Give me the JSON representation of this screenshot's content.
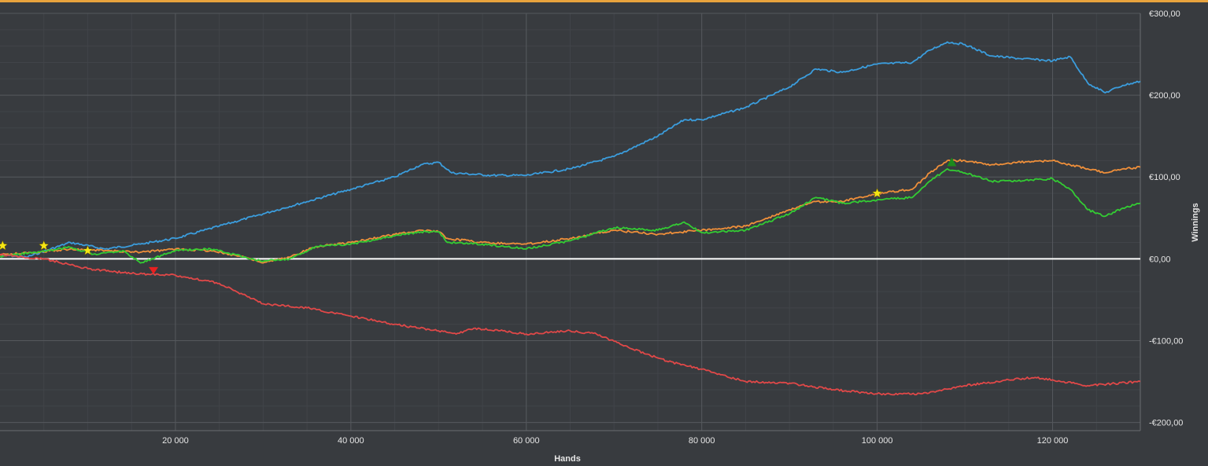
{
  "chart_data": {
    "type": "line",
    "xlabel": "Hands",
    "ylabel": "Winnings",
    "xlim": [
      0,
      130000
    ],
    "ylim": [
      -210,
      300
    ],
    "grid": true,
    "x_ticks": [
      {
        "value": 20000,
        "label": "20 000"
      },
      {
        "value": 40000,
        "label": "40 000"
      },
      {
        "value": 60000,
        "label": "60 000"
      },
      {
        "value": 80000,
        "label": "80 000"
      },
      {
        "value": 100000,
        "label": "100 000"
      },
      {
        "value": 120000,
        "label": "120 000"
      }
    ],
    "y_ticks": [
      {
        "value": 300,
        "label": "€300,00"
      },
      {
        "value": 200,
        "label": "€200,00"
      },
      {
        "value": 100,
        "label": "€100,00"
      },
      {
        "value": 0,
        "label": "€0,00"
      },
      {
        "value": -100,
        "label": "-€100,00"
      },
      {
        "value": -200,
        "label": "-€200,00"
      }
    ],
    "zero_line_color": "#ffffff",
    "series": [
      {
        "color": "#3b9ddd",
        "x": [
          0,
          3000,
          8000,
          12000,
          16000,
          20000,
          25000,
          30000,
          35000,
          40000,
          45000,
          48000,
          50000,
          51500,
          56000,
          60000,
          65000,
          70000,
          75000,
          78000,
          80000,
          85000,
          90000,
          93000,
          96000,
          100000,
          104000,
          106000,
          108000,
          110000,
          113000,
          116000,
          120000,
          122000,
          124000,
          126000,
          128000,
          130000
        ],
        "y": [
          5,
          2,
          20,
          12,
          18,
          25,
          40,
          55,
          70,
          85,
          100,
          115,
          118,
          105,
          102,
          102,
          110,
          125,
          150,
          170,
          170,
          185,
          210,
          232,
          228,
          238,
          240,
          255,
          265,
          262,
          248,
          245,
          242,
          247,
          215,
          203,
          212,
          217
        ]
      },
      {
        "color": "#ef8f3a",
        "x": [
          0,
          4000,
          8000,
          12000,
          16000,
          20000,
          24000,
          28000,
          30000,
          33000,
          36000,
          40000,
          45000,
          48000,
          50000,
          51000,
          55000,
          60000,
          65000,
          70000,
          75000,
          80000,
          85000,
          90000,
          93000,
          96000,
          100000,
          104000,
          106000,
          108000,
          110000,
          113000,
          116000,
          120000,
          124000,
          126000,
          128000,
          130000
        ],
        "y": [
          5,
          8,
          12,
          10,
          8,
          12,
          10,
          2,
          -5,
          2,
          15,
          20,
          30,
          35,
          33,
          25,
          20,
          18,
          25,
          35,
          30,
          35,
          40,
          60,
          70,
          70,
          80,
          85,
          105,
          120,
          120,
          115,
          118,
          120,
          110,
          105,
          110,
          112
        ]
      },
      {
        "color": "#33cc33",
        "x": [
          0,
          4000,
          8000,
          11000,
          14000,
          16000,
          20000,
          24000,
          28000,
          30000,
          33000,
          36000,
          40000,
          45000,
          48000,
          50000,
          51000,
          55000,
          60000,
          65000,
          70000,
          75000,
          78000,
          80000,
          85000,
          90000,
          93000,
          96000,
          100000,
          104000,
          106000,
          108000,
          110000,
          113000,
          116000,
          120000,
          122000,
          124000,
          126000,
          128000,
          130000
        ],
        "y": [
          3,
          8,
          14,
          5,
          10,
          -5,
          10,
          12,
          2,
          -3,
          0,
          15,
          18,
          28,
          33,
          33,
          20,
          18,
          12,
          22,
          38,
          35,
          45,
          32,
          35,
          55,
          75,
          68,
          72,
          75,
          95,
          110,
          105,
          95,
          95,
          98,
          85,
          60,
          52,
          62,
          68
        ]
      },
      {
        "color": "#e04848",
        "x": [
          0,
          5000,
          10000,
          15000,
          20000,
          25000,
          30000,
          35000,
          40000,
          45000,
          50000,
          52000,
          54000,
          57000,
          60000,
          65000,
          68000,
          72000,
          76000,
          80000,
          85000,
          90000,
          95000,
          100000,
          105000,
          110000,
          115000,
          118000,
          120000,
          124000,
          130000
        ],
        "y": [
          5,
          0,
          -12,
          -18,
          -20,
          -30,
          -55,
          -60,
          -70,
          -80,
          -88,
          -92,
          -85,
          -88,
          -92,
          -88,
          -92,
          -110,
          -125,
          -135,
          -150,
          -152,
          -160,
          -165,
          -165,
          -155,
          -148,
          -145,
          -148,
          -155,
          -150
        ]
      }
    ],
    "markers": [
      {
        "type": "star",
        "color": "#f5e614",
        "x": 300,
        "y": 16
      },
      {
        "type": "star",
        "color": "#f5e614",
        "x": 5000,
        "y": 16
      },
      {
        "type": "star",
        "color": "#f5e614",
        "x": 10000,
        "y": 10
      },
      {
        "type": "star",
        "color": "#f5e614",
        "x": 100000,
        "y": 80
      },
      {
        "type": "triangle-down",
        "color": "#e82020",
        "x": 17500,
        "y": -14
      },
      {
        "type": "triangle-up",
        "color": "#1c8a1c",
        "x": 108500,
        "y": 118
      }
    ]
  }
}
